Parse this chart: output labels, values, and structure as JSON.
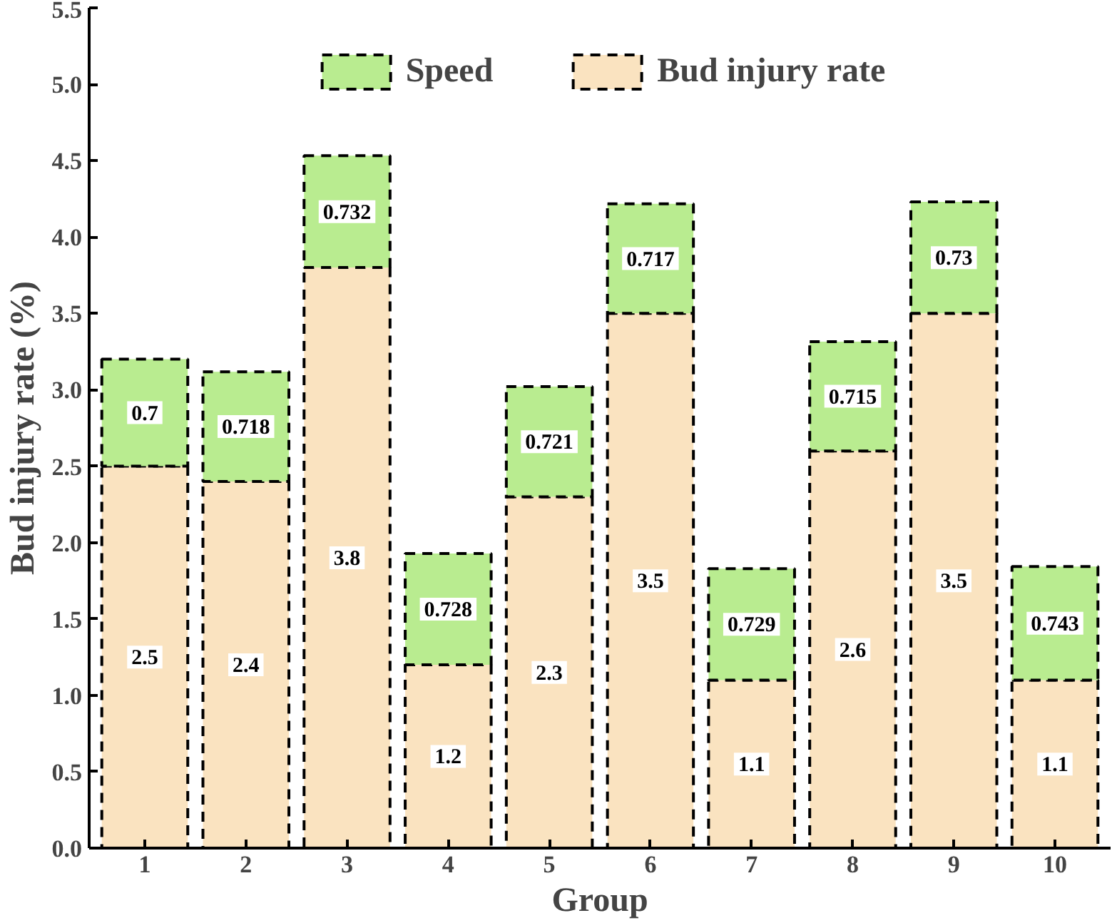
{
  "chart_data": {
    "type": "bar",
    "stacked": true,
    "xlabel": "Group",
    "ylabel": "Bud injury rate (%)",
    "categories": [
      "1",
      "2",
      "3",
      "4",
      "5",
      "6",
      "7",
      "8",
      "9",
      "10"
    ],
    "series": [
      {
        "name": "Bud injury rate",
        "color": "#fae3c0",
        "values": [
          2.5,
          2.4,
          3.8,
          1.2,
          2.3,
          3.5,
          1.1,
          2.6,
          3.5,
          1.1
        ]
      },
      {
        "name": "Speed",
        "color": "#b9ec90",
        "values": [
          0.7,
          0.718,
          0.732,
          0.728,
          0.721,
          0.717,
          0.729,
          0.715,
          0.73,
          0.743
        ]
      }
    ],
    "ylim": [
      0,
      5.5
    ],
    "yticks": [
      {
        "value": 0,
        "label": "0.0"
      },
      0.5,
      {
        "value": 1,
        "label": "1.0"
      },
      1.5,
      {
        "value": 2,
        "label": "2.0"
      },
      2.5,
      {
        "value": 3,
        "label": "3.0"
      },
      3.5,
      {
        "value": 4,
        "label": "4.0"
      },
      4.5,
      {
        "value": 5,
        "label": "5.0"
      },
      5.5
    ],
    "data_labels": true,
    "legend": "top",
    "grid": false,
    "line_style": "dashed"
  }
}
